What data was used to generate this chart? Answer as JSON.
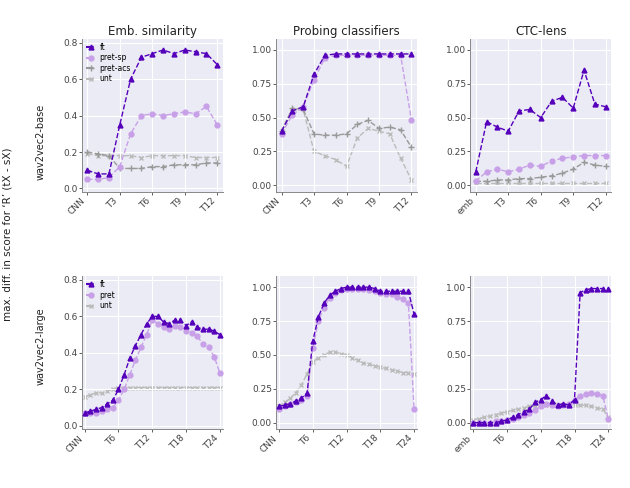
{
  "title_col": [
    "Emb. similarity",
    "Probing classifiers",
    "CTC-lens"
  ],
  "xticks_top": [
    "CNN",
    "T3",
    "T6",
    "T9",
    "T12"
  ],
  "xticks_bot": [
    "CNN",
    "T6",
    "T12",
    "T18",
    "T24"
  ],
  "xticks_ctc_top": [
    "emb",
    "T3",
    "T6",
    "T9",
    "T12"
  ],
  "xticks_ctc_bot": [
    "emb",
    "T6",
    "T12",
    "T18",
    "T24"
  ],
  "colors": {
    "ft": "#5500bb",
    "pret_sp": "#c8a0e8",
    "pret_acs": "#999999",
    "unt": "#bbbbbb",
    "pret": "#c8a0e8"
  },
  "top_emb": {
    "x": [
      0,
      1,
      2,
      3,
      4,
      5,
      6,
      7,
      8,
      9,
      10,
      11,
      12
    ],
    "ft": [
      0.1,
      0.08,
      0.08,
      0.35,
      0.6,
      0.72,
      0.74,
      0.76,
      0.74,
      0.76,
      0.75,
      0.74,
      0.68
    ],
    "pret_sp": [
      0.05,
      0.05,
      0.06,
      0.12,
      0.3,
      0.4,
      0.41,
      0.4,
      0.41,
      0.42,
      0.41,
      0.45,
      0.35
    ],
    "pret_acs": [
      0.2,
      0.19,
      0.18,
      0.11,
      0.11,
      0.11,
      0.12,
      0.12,
      0.13,
      0.13,
      0.13,
      0.14,
      0.14
    ],
    "unt": [
      0.19,
      0.18,
      0.18,
      0.18,
      0.18,
      0.17,
      0.18,
      0.18,
      0.18,
      0.18,
      0.17,
      0.17,
      0.17
    ]
  },
  "top_probe": {
    "x": [
      0,
      1,
      2,
      3,
      4,
      5,
      6,
      7,
      8,
      9,
      10,
      11,
      12
    ],
    "ft": [
      0.4,
      0.55,
      0.58,
      0.82,
      0.96,
      0.97,
      0.97,
      0.97,
      0.97,
      0.97,
      0.97,
      0.97,
      0.97
    ],
    "pret_sp": [
      0.38,
      0.52,
      0.58,
      0.78,
      0.94,
      0.96,
      0.96,
      0.96,
      0.96,
      0.96,
      0.96,
      0.96,
      0.48
    ],
    "pret_acs": [
      0.4,
      0.57,
      0.56,
      0.38,
      0.37,
      0.37,
      0.38,
      0.45,
      0.48,
      0.42,
      0.43,
      0.41,
      0.28
    ],
    "unt": [
      0.4,
      0.55,
      0.56,
      0.25,
      0.22,
      0.19,
      0.14,
      0.35,
      0.42,
      0.4,
      0.38,
      0.2,
      0.04
    ]
  },
  "top_ctc": {
    "x": [
      0,
      1,
      2,
      3,
      4,
      5,
      6,
      7,
      8,
      9,
      10,
      11,
      12
    ],
    "ft": [
      0.1,
      0.47,
      0.43,
      0.4,
      0.55,
      0.56,
      0.5,
      0.62,
      0.65,
      0.57,
      0.85,
      0.6,
      0.58
    ],
    "pret_sp": [
      0.03,
      0.1,
      0.12,
      0.1,
      0.12,
      0.15,
      0.14,
      0.18,
      0.2,
      0.21,
      0.22,
      0.22,
      0.22
    ],
    "pret_acs": [
      0.03,
      0.03,
      0.04,
      0.04,
      0.05,
      0.05,
      0.06,
      0.07,
      0.09,
      0.12,
      0.17,
      0.15,
      0.14
    ],
    "unt": [
      0.02,
      0.02,
      0.02,
      0.02,
      0.02,
      0.02,
      0.02,
      0.02,
      0.02,
      0.02,
      0.02,
      0.02,
      0.02
    ]
  },
  "bot_emb": {
    "x": [
      0,
      1,
      2,
      3,
      4,
      5,
      6,
      7,
      8,
      9,
      10,
      11,
      12,
      13,
      14,
      15,
      16,
      17,
      18,
      19,
      20,
      21,
      22,
      23,
      24
    ],
    "ft": [
      0.07,
      0.08,
      0.09,
      0.1,
      0.12,
      0.14,
      0.2,
      0.28,
      0.37,
      0.44,
      0.5,
      0.56,
      0.6,
      0.6,
      0.57,
      0.56,
      0.58,
      0.58,
      0.55,
      0.57,
      0.54,
      0.53,
      0.53,
      0.52,
      0.5
    ],
    "pret": [
      0.07,
      0.07,
      0.07,
      0.08,
      0.09,
      0.1,
      0.14,
      0.2,
      0.28,
      0.36,
      0.43,
      0.5,
      0.58,
      0.56,
      0.54,
      0.53,
      0.55,
      0.54,
      0.52,
      0.51,
      0.49,
      0.45,
      0.43,
      0.38,
      0.29
    ],
    "unt": [
      0.16,
      0.17,
      0.18,
      0.18,
      0.19,
      0.2,
      0.21,
      0.21,
      0.21,
      0.21,
      0.21,
      0.21,
      0.21,
      0.21,
      0.21,
      0.21,
      0.21,
      0.21,
      0.21,
      0.21,
      0.21,
      0.21,
      0.21,
      0.21,
      0.21
    ]
  },
  "bot_probe": {
    "x": [
      0,
      1,
      2,
      3,
      4,
      5,
      6,
      7,
      8,
      9,
      10,
      11,
      12,
      13,
      14,
      15,
      16,
      17,
      18,
      19,
      20,
      21,
      22,
      23,
      24
    ],
    "ft": [
      0.12,
      0.13,
      0.14,
      0.16,
      0.18,
      0.22,
      0.6,
      0.78,
      0.88,
      0.94,
      0.97,
      0.99,
      1.0,
      1.0,
      1.0,
      1.0,
      1.0,
      0.99,
      0.97,
      0.97,
      0.97,
      0.97,
      0.97,
      0.97,
      0.8
    ],
    "pret": [
      0.1,
      0.12,
      0.14,
      0.15,
      0.17,
      0.2,
      0.55,
      0.75,
      0.85,
      0.92,
      0.96,
      0.98,
      0.99,
      0.99,
      0.99,
      0.99,
      0.98,
      0.97,
      0.96,
      0.95,
      0.95,
      0.93,
      0.91,
      0.88,
      0.1
    ],
    "unt": [
      0.12,
      0.15,
      0.18,
      0.22,
      0.28,
      0.36,
      0.45,
      0.48,
      0.5,
      0.52,
      0.52,
      0.51,
      0.5,
      0.48,
      0.46,
      0.44,
      0.43,
      0.42,
      0.41,
      0.4,
      0.39,
      0.38,
      0.37,
      0.37,
      0.36
    ]
  },
  "bot_ctc": {
    "x": [
      0,
      1,
      2,
      3,
      4,
      5,
      6,
      7,
      8,
      9,
      10,
      11,
      12,
      13,
      14,
      15,
      16,
      17,
      18,
      19,
      20,
      21,
      22,
      23,
      24
    ],
    "ft": [
      0.0,
      0.0,
      0.0,
      0.0,
      0.0,
      0.01,
      0.02,
      0.04,
      0.06,
      0.08,
      0.1,
      0.15,
      0.17,
      0.2,
      0.16,
      0.13,
      0.14,
      0.13,
      0.17,
      0.96,
      0.98,
      0.99,
      0.99,
      0.99,
      0.99
    ],
    "pret": [
      0.0,
      0.0,
      0.0,
      0.0,
      0.01,
      0.01,
      0.02,
      0.03,
      0.04,
      0.06,
      0.07,
      0.09,
      0.12,
      0.14,
      0.13,
      0.12,
      0.13,
      0.14,
      0.17,
      0.2,
      0.21,
      0.22,
      0.21,
      0.2,
      0.03
    ],
    "unt": [
      0.02,
      0.03,
      0.04,
      0.05,
      0.06,
      0.07,
      0.08,
      0.09,
      0.1,
      0.11,
      0.12,
      0.12,
      0.13,
      0.13,
      0.13,
      0.13,
      0.13,
      0.13,
      0.13,
      0.13,
      0.13,
      0.12,
      0.11,
      0.1,
      0.04
    ]
  },
  "bg_plot": "#ebebf5",
  "fig_bg": "#ffffff",
  "grid_color": "#ffffff",
  "spine_color": "#888888",
  "tick_color": "#444444"
}
